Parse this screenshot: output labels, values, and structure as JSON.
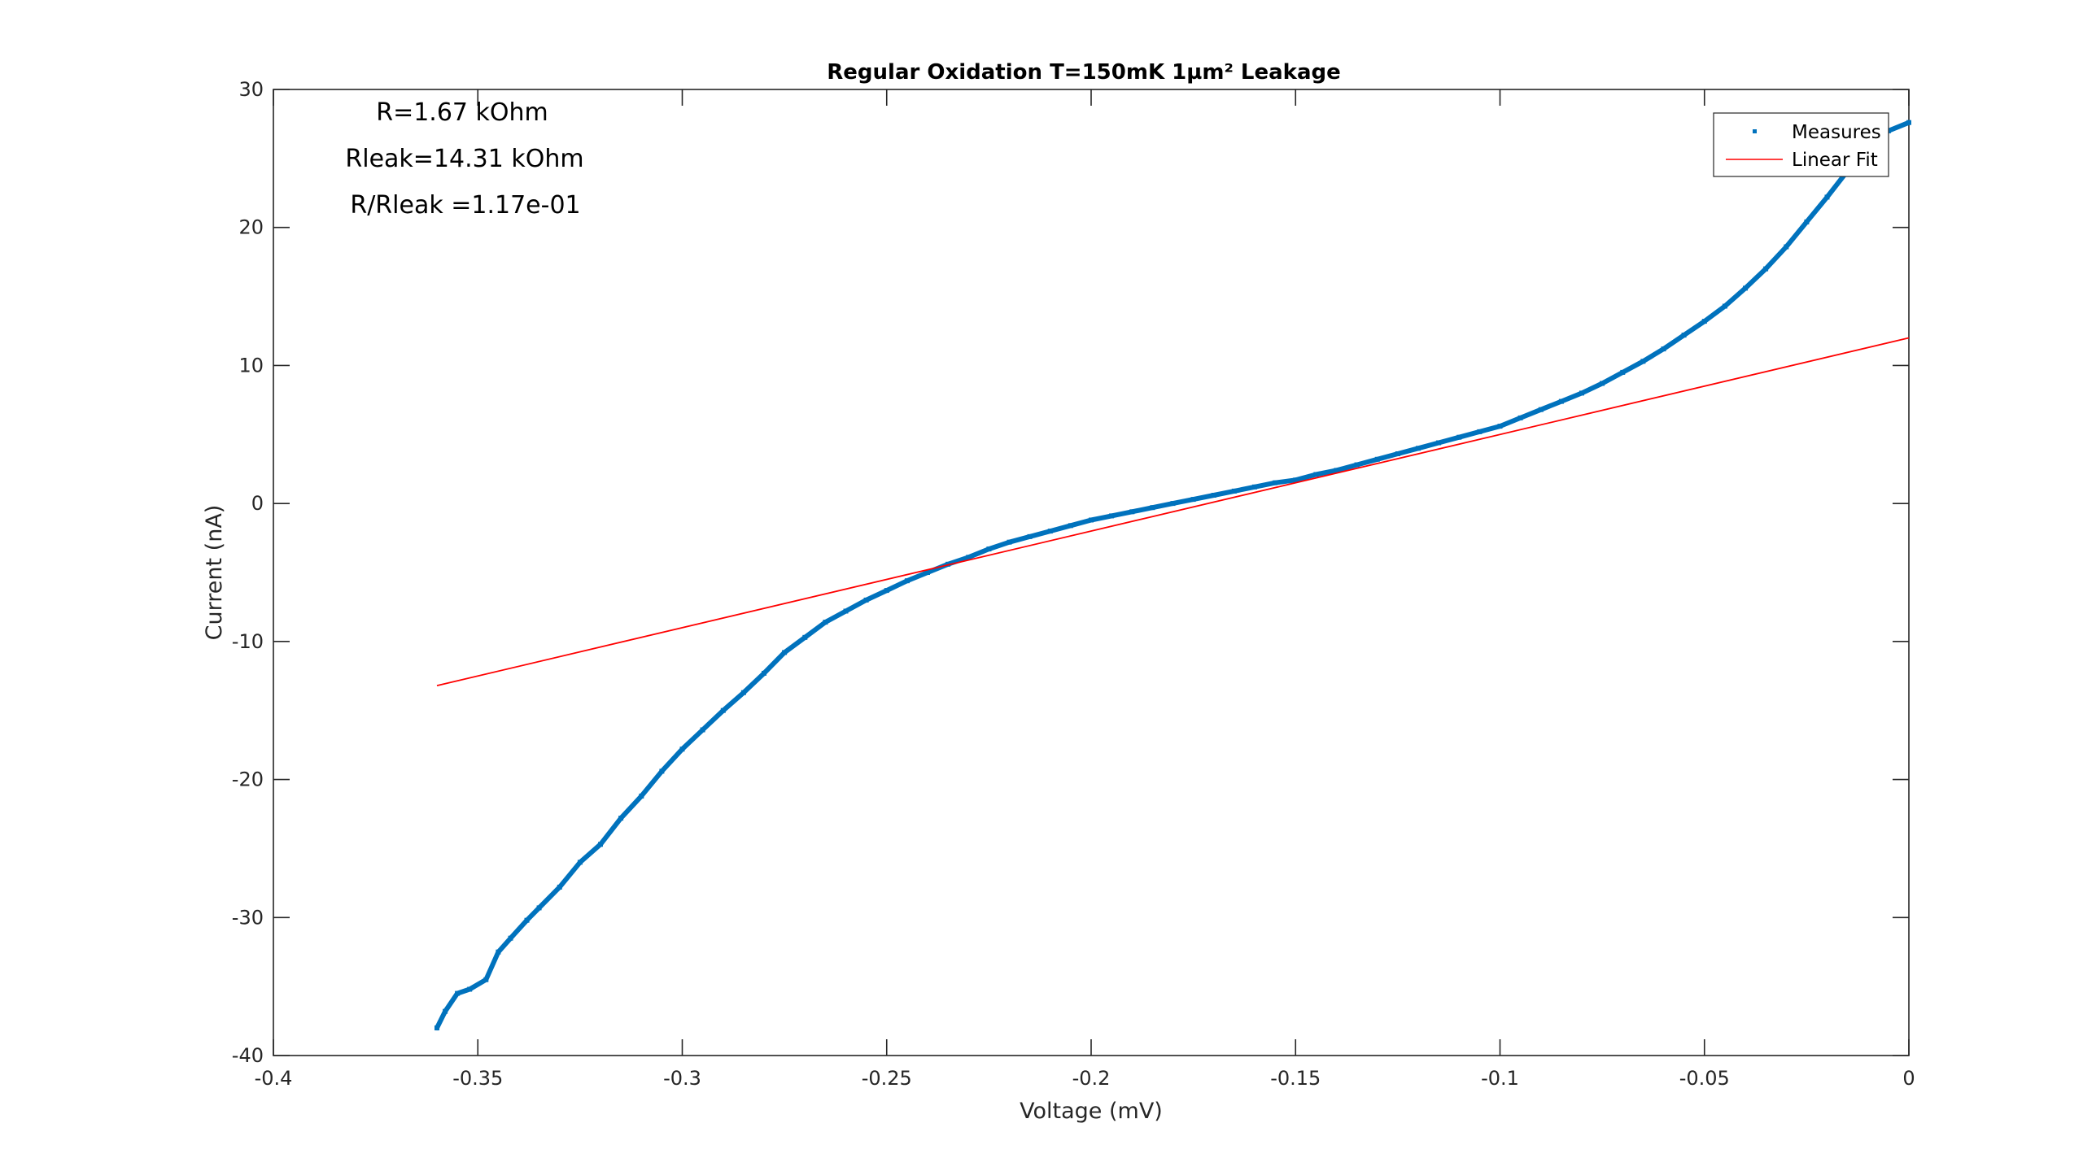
{
  "chart_data": {
    "type": "scatter",
    "title": "Regular Oxidation T=150mK 1µm² Leakage",
    "xlabel": "Voltage (mV)",
    "ylabel": "Current (nA)",
    "xlim": [
      -0.4,
      0
    ],
    "ylim": [
      -40,
      30
    ],
    "x_ticks": [
      -0.4,
      -0.35,
      -0.3,
      -0.25,
      -0.2,
      -0.15,
      -0.1,
      -0.05,
      0
    ],
    "x_tick_labels": [
      "-0.4",
      "-0.35",
      "-0.3",
      "-0.25",
      "-0.2",
      "-0.15",
      "-0.1",
      "-0.05",
      "0"
    ],
    "y_ticks": [
      -40,
      -30,
      -20,
      -10,
      0,
      10,
      20,
      30
    ],
    "y_tick_labels": [
      "-40",
      "-30",
      "-20",
      "-10",
      "0",
      "10",
      "20",
      "30"
    ],
    "grid": false,
    "legend_position": "top-right",
    "annotations": [
      "R=1.67 kOhm",
      "Rleak=14.31 kOhm",
      "R/Rleak =1.17e-01"
    ],
    "series": [
      {
        "name": "Measures",
        "kind": "markers",
        "color": "#0072BD",
        "x": [
          -0.36,
          -0.358,
          -0.355,
          -0.352,
          -0.348,
          -0.345,
          -0.342,
          -0.338,
          -0.335,
          -0.33,
          -0.325,
          -0.32,
          -0.315,
          -0.31,
          -0.305,
          -0.3,
          -0.295,
          -0.29,
          -0.285,
          -0.28,
          -0.275,
          -0.27,
          -0.265,
          -0.26,
          -0.255,
          -0.25,
          -0.245,
          -0.24,
          -0.235,
          -0.23,
          -0.225,
          -0.22,
          -0.215,
          -0.21,
          -0.205,
          -0.2,
          -0.195,
          -0.19,
          -0.185,
          -0.18,
          -0.175,
          -0.17,
          -0.165,
          -0.16,
          -0.155,
          -0.15,
          -0.145,
          -0.14,
          -0.135,
          -0.13,
          -0.125,
          -0.12,
          -0.115,
          -0.11,
          -0.105,
          -0.1,
          -0.095,
          -0.09,
          -0.085,
          -0.08,
          -0.075,
          -0.07,
          -0.065,
          -0.06,
          -0.055,
          -0.05,
          -0.045,
          -0.04,
          -0.035,
          -0.03,
          -0.025,
          -0.02,
          -0.015,
          -0.01,
          -0.005,
          0
        ],
        "y": [
          -38.0,
          -36.8,
          -35.5,
          -35.2,
          -34.5,
          -32.5,
          -31.5,
          -30.2,
          -29.3,
          -27.8,
          -26.0,
          -24.7,
          -22.8,
          -21.2,
          -19.4,
          -17.8,
          -16.4,
          -15.0,
          -13.7,
          -12.3,
          -10.8,
          -9.7,
          -8.6,
          -7.8,
          -7.0,
          -6.3,
          -5.6,
          -5.0,
          -4.4,
          -3.9,
          -3.3,
          -2.8,
          -2.4,
          -2.0,
          -1.6,
          -1.2,
          -0.9,
          -0.6,
          -0.3,
          0.0,
          0.3,
          0.6,
          0.9,
          1.2,
          1.5,
          1.7,
          2.1,
          2.4,
          2.8,
          3.2,
          3.6,
          4.0,
          4.4,
          4.8,
          5.2,
          5.6,
          6.2,
          6.8,
          7.4,
          8.0,
          8.7,
          9.5,
          10.3,
          11.2,
          12.2,
          13.2,
          14.3,
          15.6,
          17.0,
          18.6,
          20.4,
          22.2,
          24.1,
          25.9,
          27.0,
          27.6
        ]
      },
      {
        "name": "Linear Fit",
        "kind": "line",
        "color": "#FF0000",
        "x": [
          -0.36,
          0
        ],
        "y": [
          -13.2,
          12.0
        ]
      }
    ]
  }
}
